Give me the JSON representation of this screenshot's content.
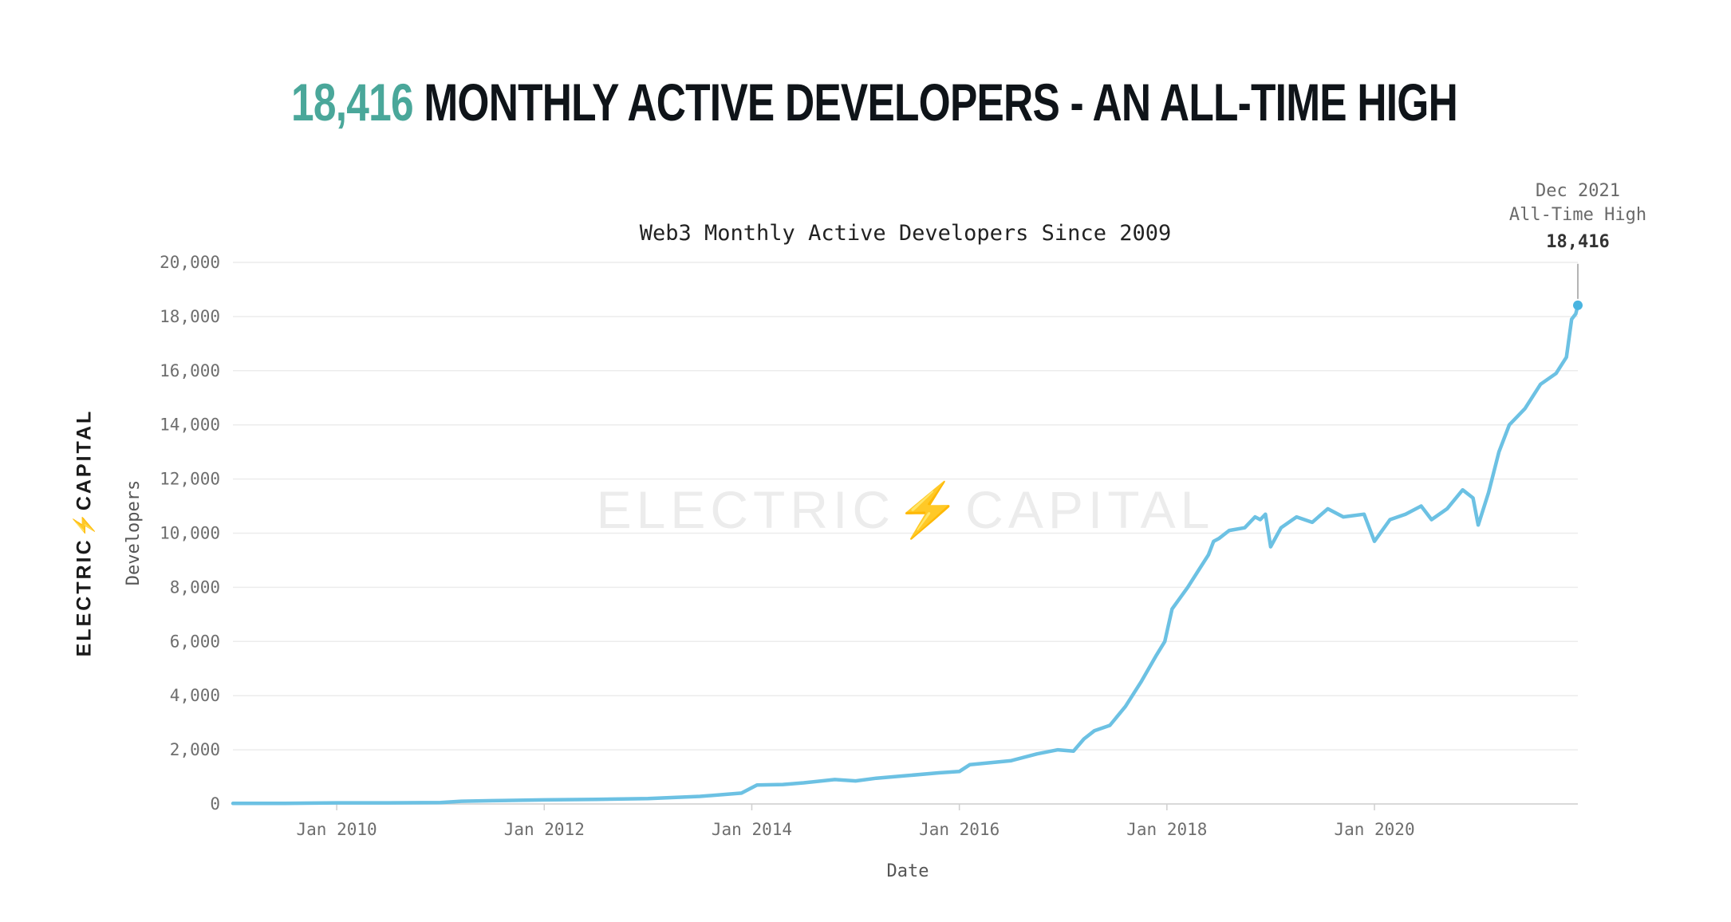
{
  "headline": {
    "number": "18,416",
    "text": " MONTHLY ACTIVE DEVELOPERS - AN ALL-TIME HIGH"
  },
  "brand": {
    "left": "ELECTRIC",
    "bolt": "⚡",
    "right": "CAPITAL",
    "watermark": "ELECTRIC⚡CAPITAL"
  },
  "colors": {
    "accent": "#4aa79a",
    "line": "#6cc1e3",
    "grid": "#ececec"
  },
  "chart_data": {
    "type": "line",
    "title": "Web3 Monthly Active Developers Since 2009",
    "xlabel": "Date",
    "ylabel": "Developers",
    "ylim": [
      0,
      20000
    ],
    "yticks": [
      0,
      2000,
      4000,
      6000,
      8000,
      10000,
      12000,
      14000,
      16000,
      18000,
      20000
    ],
    "ytick_labels": [
      "0",
      "2,000",
      "4,000",
      "6,000",
      "8,000",
      "10,000",
      "12,000",
      "14,000",
      "16,000",
      "18,000",
      "20,000"
    ],
    "xlim": [
      2009.0,
      2021.96
    ],
    "xticks": [
      2010,
      2012,
      2014,
      2016,
      2018,
      2020
    ],
    "xtick_labels": [
      "Jan 2010",
      "Jan 2012",
      "Jan 2014",
      "Jan 2016",
      "Jan 2018",
      "Jan 2020"
    ],
    "series": [
      {
        "name": "Developers",
        "x": [
          2009.0,
          2009.5,
          2010.0,
          2010.5,
          2011.0,
          2011.2,
          2011.5,
          2012.0,
          2012.5,
          2013.0,
          2013.5,
          2013.9,
          2014.05,
          2014.3,
          2014.5,
          2014.8,
          2015.0,
          2015.2,
          2015.5,
          2015.8,
          2016.0,
          2016.1,
          2016.5,
          2016.75,
          2016.95,
          2017.1,
          2017.2,
          2017.3,
          2017.45,
          2017.6,
          2017.75,
          2017.9,
          2017.98,
          2018.05,
          2018.2,
          2018.3,
          2018.4,
          2018.45,
          2018.5,
          2018.6,
          2018.75,
          2018.85,
          2018.9,
          2018.95,
          2019.0,
          2019.1,
          2019.25,
          2019.4,
          2019.55,
          2019.7,
          2019.9,
          2020.0,
          2020.15,
          2020.3,
          2020.45,
          2020.55,
          2020.7,
          2020.85,
          2020.95,
          2021.0,
          2021.1,
          2021.2,
          2021.3,
          2021.45,
          2021.6,
          2021.75,
          2021.85,
          2021.9,
          2021.94,
          2021.96
        ],
        "values": [
          20,
          20,
          40,
          40,
          50,
          100,
          120,
          150,
          170,
          200,
          280,
          400,
          700,
          720,
          780,
          900,
          850,
          950,
          1050,
          1150,
          1200,
          1450,
          1600,
          1850,
          2000,
          1950,
          2400,
          2700,
          2900,
          3600,
          4500,
          5500,
          6000,
          7200,
          8000,
          8600,
          9200,
          9700,
          9800,
          10100,
          10200,
          10600,
          10500,
          10700,
          9500,
          10200,
          10600,
          10400,
          10900,
          10600,
          10700,
          9700,
          10500,
          10700,
          11000,
          10500,
          10900,
          11600,
          11300,
          10300,
          11500,
          13000,
          14000,
          14600,
          15500,
          15900,
          16500,
          17900,
          18100,
          18416
        ]
      }
    ],
    "annotation": {
      "label_line1": "Dec 2021",
      "label_line2": "All-Time High",
      "value_label": "18,416",
      "x": 2021.96,
      "y": 18416
    }
  }
}
